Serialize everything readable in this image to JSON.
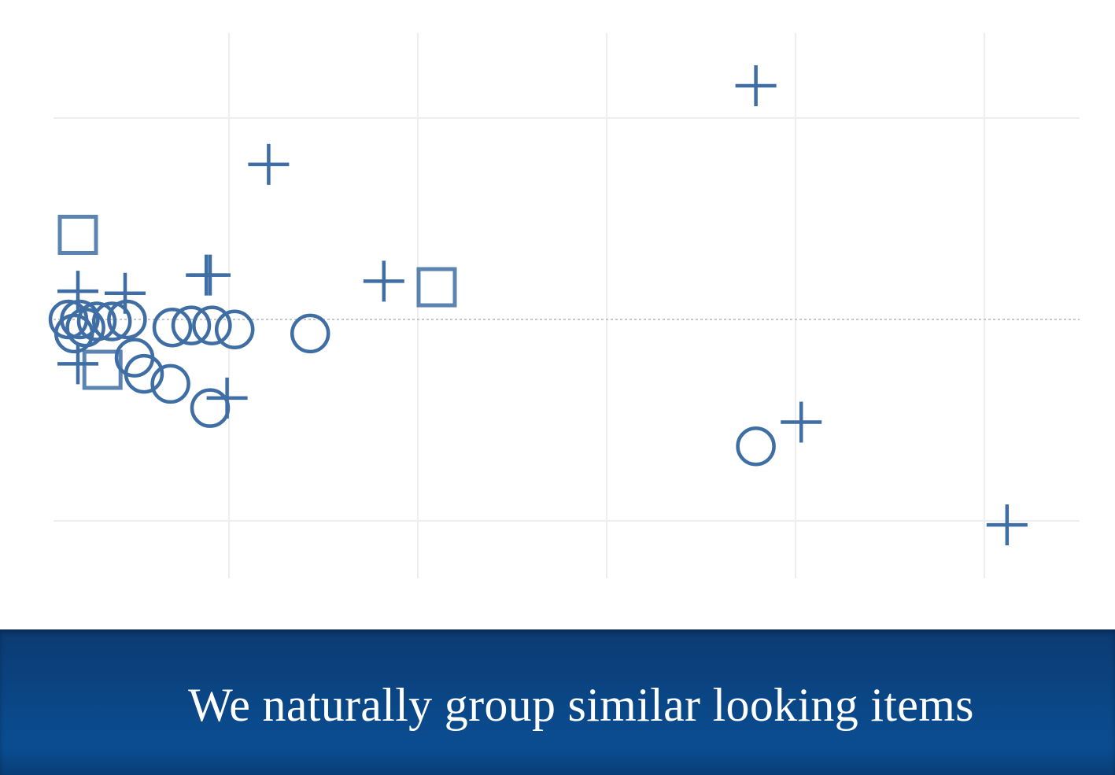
{
  "colors": {
    "marker": "#3f6ea5",
    "grid": "#eceef2",
    "zero_line": "#b5b5b5",
    "caption_bg": "#0a4584",
    "caption_text": "#ffffff"
  },
  "caption": {
    "text": "We naturally group similar looking items"
  },
  "chart_data": {
    "type": "scatter",
    "title": "",
    "xlabel": "",
    "ylabel": "",
    "grid": true,
    "zero_line": "dotted",
    "xlim": [
      -0.9,
      4.5
    ],
    "ylim": [
      -1.3,
      1.55
    ],
    "x_gridlines": [
      0,
      1,
      2,
      3,
      4
    ],
    "y_gridlines": [
      -1,
      1
    ],
    "series": [
      {
        "marker": "plus",
        "points": [
          [
            0.21,
            0.77
          ],
          [
            2.79,
            1.16
          ],
          [
            -0.12,
            0.22
          ],
          [
            -0.1,
            0.22
          ],
          [
            0.82,
            0.19
          ],
          [
            -0.8,
            0.14
          ],
          [
            -0.55,
            0.13
          ],
          [
            -0.8,
            -0.22
          ],
          [
            -0.01,
            -0.39
          ],
          [
            3.03,
            -0.51
          ],
          [
            4.12,
            -1.02
          ]
        ]
      },
      {
        "marker": "circle",
        "points": [
          [
            -0.85,
            0.0
          ],
          [
            -0.82,
            -0.07
          ],
          [
            -0.79,
            0.0
          ],
          [
            -0.76,
            -0.04
          ],
          [
            -0.7,
            -0.01
          ],
          [
            -0.62,
            -0.01
          ],
          [
            -0.54,
            0.0
          ],
          [
            -0.5,
            -0.19
          ],
          [
            -0.45,
            -0.27
          ],
          [
            -0.31,
            -0.32
          ],
          [
            -0.3,
            -0.04
          ],
          [
            -0.2,
            -0.03
          ],
          [
            -0.09,
            -0.03
          ],
          [
            0.03,
            -0.05
          ],
          [
            0.43,
            -0.07
          ],
          [
            -0.1,
            -0.44
          ],
          [
            2.79,
            -0.63
          ]
        ]
      },
      {
        "marker": "square",
        "points": [
          [
            -0.8,
            0.42
          ],
          [
            1.1,
            0.16
          ],
          [
            -0.67,
            -0.25
          ]
        ]
      }
    ]
  }
}
